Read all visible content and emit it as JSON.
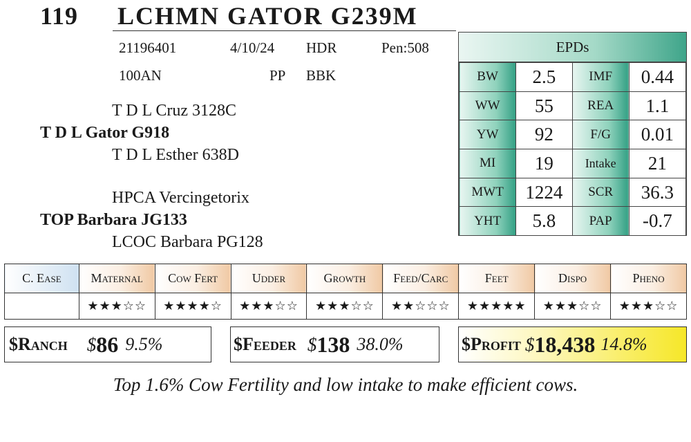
{
  "header": {
    "lot": "119",
    "name": "LCHMN GATOR G239M"
  },
  "info": {
    "reg": "21196401",
    "dob": "4/10/24",
    "breed": "HDR",
    "pen": "Pen:508",
    "tattoo": "100AN",
    "polled": "PP",
    "brand": "BBK"
  },
  "pedigree": {
    "sire_sire": "T D L Cruz 3128C",
    "sire": "T D L Gator G918",
    "sire_dam": "T D L Esther 638D",
    "dam_sire": "HPCA Vercingetorix",
    "dam": "TOP Barbara JG133",
    "dam_dam": "LCOC Barbara PG128"
  },
  "epds": {
    "title": "EPDs",
    "rows": [
      {
        "l1": "BW",
        "v1": "2.5",
        "l2": "IMF",
        "v2": "0.44"
      },
      {
        "l1": "WW",
        "v1": "55",
        "l2": "REA",
        "v2": "1.1"
      },
      {
        "l1": "YW",
        "v1": "92",
        "l2": "F/G",
        "v2": "0.01"
      },
      {
        "l1": "MI",
        "v1": "19",
        "l2": "Intake",
        "v2": "21"
      },
      {
        "l1": "MWT",
        "v1": "1224",
        "l2": "SCR",
        "v2": "36.3"
      },
      {
        "l1": "YHT",
        "v1": "5.8",
        "l2": "PAP",
        "v2": "-0.7"
      }
    ]
  },
  "traits": {
    "headers": [
      "C. Ease",
      "Maternal",
      "Cow Fert",
      "Udder",
      "Growth",
      "Feed/Carc",
      "Feet",
      "Dispo",
      "Pheno"
    ],
    "stars": [
      "",
      "★★★☆☆",
      "★★★★☆",
      "★★★☆☆",
      "★★★☆☆",
      "★★☆☆☆",
      "★★★★★",
      "★★★☆☆",
      "★★★☆☆"
    ]
  },
  "indexes": {
    "ranch": {
      "name": "$Ranch",
      "dollar": "$",
      "amount": "86",
      "pct": "9.5%"
    },
    "feeder": {
      "name": "$Feeder",
      "dollar": "$",
      "amount": "138",
      "pct": "38.0%"
    },
    "profit": {
      "name": "$Profit",
      "dollar": "$",
      "amount": "18,438",
      "pct": "14.8%"
    }
  },
  "comment": "Top 1.6% Cow Fertility and low intake to make efficient cows."
}
